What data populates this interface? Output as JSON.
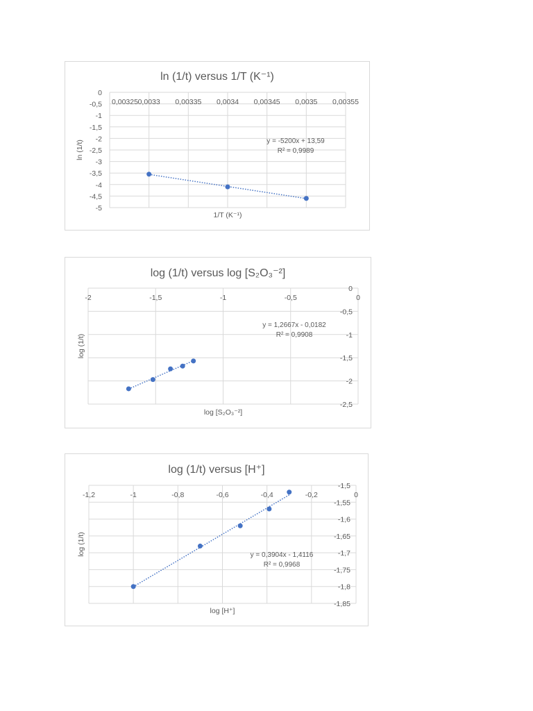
{
  "chart_data": [
    {
      "type": "scatter",
      "title": "ln (1/t) versus 1/T (K⁻¹)",
      "xlabel": "1/T (K⁻¹)",
      "ylabel": "ln (1/t)",
      "xlim": [
        0.00325,
        0.00355
      ],
      "ylim": [
        -5,
        0
      ],
      "xticks": [
        "0,00325",
        "0,0033",
        "0,00335",
        "0,0034",
        "0,00345",
        "0,0035",
        "0,00355"
      ],
      "yticks": [
        "0",
        "-0,5",
        "-1",
        "-1,5",
        "-2",
        "-2,5",
        "-3",
        "-3,5",
        "-4",
        "-4,5",
        "-5"
      ],
      "x": [
        0.0033,
        0.0034,
        0.0035
      ],
      "y": [
        -3.55,
        -4.1,
        -4.6
      ],
      "trendline": {
        "style": "dotted linear",
        "equation": "y = -5200x + 13,59",
        "r2": "R² = 0,9989"
      },
      "grid": true,
      "color": "#4472c4"
    },
    {
      "type": "scatter",
      "title": "log (1/t) versus log [S₂O₃⁻²]",
      "xlabel": "log [S₂O₃⁻²]",
      "ylabel": "log (1/t)",
      "xlim": [
        -2,
        0
      ],
      "ylim": [
        -2.5,
        0
      ],
      "xticks": [
        "-2",
        "-1,5",
        "-1",
        "-0,5",
        "0"
      ],
      "yticks": [
        "0",
        "-0,5",
        "-1",
        "-1,5",
        "-2",
        "-2,5"
      ],
      "x": [
        -1.7,
        -1.52,
        -1.39,
        -1.3,
        -1.22
      ],
      "y": [
        -2.17,
        -1.97,
        -1.74,
        -1.68,
        -1.57
      ],
      "trendline": {
        "style": "dotted linear",
        "equation": "y = 1,2667x - 0,0182",
        "r2": "R² = 0,9908"
      },
      "grid": true,
      "color": "#4472c4"
    },
    {
      "type": "scatter",
      "title": "log (1/t) versus [H⁺]",
      "xlabel": "log [H⁺]",
      "ylabel": "log (1/t)",
      "xlim": [
        -1.2,
        0
      ],
      "ylim": [
        -1.85,
        -1.5
      ],
      "xticks": [
        "-1,2",
        "-1",
        "-0,8",
        "-0,6",
        "-0,4",
        "-0,2",
        "0"
      ],
      "yticks": [
        "-1,5",
        "-1,55",
        "-1,6",
        "-1,65",
        "-1,7",
        "-1,75",
        "-1,8",
        "-1,85"
      ],
      "x": [
        -1.0,
        -0.7,
        -0.52,
        -0.39,
        -0.3
      ],
      "y": [
        -1.8,
        -1.68,
        -1.62,
        -1.57,
        -1.52
      ],
      "trendline": {
        "style": "dotted linear",
        "equation": "y = 0,3904x - 1,4116",
        "r2": "R² = 0,9968"
      },
      "grid": true,
      "color": "#4472c4"
    }
  ]
}
